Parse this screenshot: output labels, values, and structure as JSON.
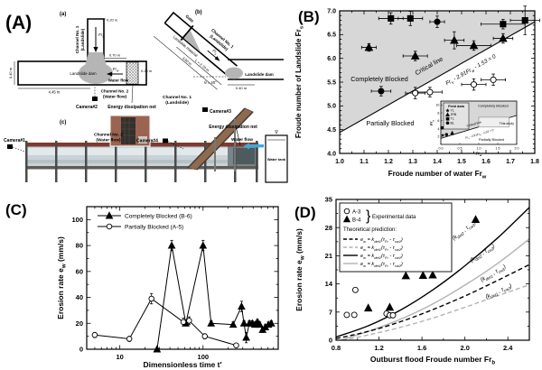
{
  "figure": {
    "panels": {
      "a": "(A)",
      "b": "(B)",
      "c": "(C)",
      "d": "(D)"
    }
  },
  "panelA": {
    "sub_a": {
      "tag": "(a)",
      "channel1_l1": "Channel No. 1",
      "channel1_l2": "(Landslide)",
      "width_dim": "0.20 m",
      "frs": "Fr_s",
      "top_dim": "0.70 m",
      "net_dim": "0.20 m",
      "left_dim": "0.40 m",
      "dam": "Landslide dam",
      "frw": "Fr_w",
      "water_flow": "Water flow",
      "channel2_l1": "Channel No. 2",
      "channel2_l2": "(Water flow)",
      "bottom_dim": "4.45 m",
      "camera2": "Camera#2",
      "net_label": "Energy dissipation net"
    },
    "sub_b": {
      "tag": "(b)",
      "gate": "Gate",
      "channel1_l1": "Channel No. 1",
      "channel1_l2": "(Landslide)",
      "material": "Landslide material",
      "len_dim": "L = 2.70 m",
      "total_dim": "3.60 m",
      "angle": "θ = 40°",
      "frs": "Fr_s",
      "dam": "Landslide dam",
      "base_dim": "0.40 m"
    },
    "sub_c": {
      "tag": "(c)",
      "camera1": "Camera#1",
      "camera3": "Camera#3",
      "camera4": "Camera#4",
      "channel1_l1": "Channel No. 1",
      "channel1_l2": "(Landslide)",
      "channel2_l1": "Channel No. 2",
      "channel2_l2": "(Water flow)",
      "net_inset_label": "Energy dissipation net",
      "net_right_label": "Energy dissipation net",
      "water_flow": "Water flow",
      "water_tank": "Water tank"
    }
  },
  "chart_data": [
    {
      "id": "B",
      "type": "scatter",
      "panel_label": "(B)",
      "xlabel": "Froude number of water  Fr_w",
      "ylabel": "Froude number of Landslide  Fr_s",
      "xlim": [
        1.0,
        1.8
      ],
      "ylim": [
        4.0,
        7.0
      ],
      "xticks": [
        1.0,
        1.1,
        1.2,
        1.3,
        1.4,
        1.5,
        1.6,
        1.7,
        1.8
      ],
      "yticks": [
        4.0,
        4.5,
        5.0,
        5.5,
        6.0,
        6.5,
        7.0
      ],
      "critical_line": {
        "slope": 2.91,
        "intercept": 1.53,
        "label": "Critical line",
        "equation": "Fr_s - 2.91Fr_w - 1.53 = 0"
      },
      "region_above": "Completely Blocked",
      "region_below": "Partially Blocked",
      "region_fill": "#d7d7d7",
      "series": [
        {
          "name": "squares-filled",
          "marker": "square",
          "filled": true,
          "points": [
            [
              1.21,
              6.84,
              0.05,
              0.12
            ],
            [
              1.29,
              6.84,
              0.05,
              0.15
            ],
            [
              1.67,
              6.72,
              0.09,
              0.1
            ],
            [
              1.76,
              6.8,
              0.06,
              0.3
            ]
          ]
        },
        {
          "name": "circles-filled",
          "marker": "circle",
          "filled": true,
          "points": [
            [
              1.4,
              6.77,
              0.03,
              0.12
            ],
            [
              1.17,
              5.31,
              0.04,
              0.1
            ]
          ]
        },
        {
          "name": "triangles-filled",
          "marker": "triangle",
          "filled": true,
          "points": [
            [
              1.12,
              6.23,
              0.03,
              0.08
            ],
            [
              1.31,
              6.05,
              0.05,
              0.1
            ],
            [
              1.47,
              6.38,
              0.04,
              0.18
            ],
            [
              1.55,
              6.27,
              0.07,
              0.1
            ],
            [
              1.67,
              6.42,
              0.04,
              0.1
            ]
          ]
        },
        {
          "name": "circles-open",
          "marker": "circle",
          "filled": false,
          "points": [
            [
              1.31,
              5.27,
              0.04,
              0.12
            ],
            [
              1.37,
              5.29,
              0.05,
              0.1
            ],
            [
              1.55,
              5.45,
              0.05,
              0.12
            ],
            [
              1.63,
              5.55,
              0.05,
              0.12
            ]
          ]
        }
      ],
      "inset": {
        "xlabel": "Fr_w",
        "ylabel": "Fr_s",
        "xlim": [
          0,
          2
        ],
        "ylim": [
          0,
          11
        ],
        "xticks": [
          0.0,
          0.5,
          1.0,
          1.5,
          2.0
        ],
        "yticks": [
          2,
          4,
          6,
          8,
          10
        ],
        "legend_title": "Field data",
        "legend": [
          {
            "marker": "star",
            "label": "YL"
          },
          {
            "marker": "triangle",
            "label": "JRB"
          },
          {
            "marker": "square",
            "label": "TL"
          },
          {
            "marker": "circle",
            "label": "BL"
          }
        ],
        "critical_label": "Critical line",
        "equation": "Fr_s - 2.91Fr_w - 1.53 = 0",
        "this_study": "This study",
        "region_above": "Completely Blocked",
        "region_below": "Partially Blocked",
        "study_box": [
          1.0,
          4.4,
          1.8,
          6.9
        ],
        "points": [
          {
            "marker": "star",
            "x": 0.05,
            "y": 2.3
          },
          {
            "marker": "triangle",
            "x": 0.3,
            "y": 2.9
          },
          {
            "marker": "square",
            "x": 0.03,
            "y": 4.2
          },
          {
            "marker": "circle",
            "x": 0.15,
            "y": 2.5
          }
        ]
      }
    },
    {
      "id": "C",
      "type": "line",
      "panel_label": "(C)",
      "xlabel": "Dimensionless time  t′",
      "ylabel": "Erosion rate  e_w (mm/s)",
      "xscale": "log",
      "xlim": [
        4,
        800
      ],
      "ylim": [
        0,
        110
      ],
      "xticks": [
        10,
        100
      ],
      "xminor": [
        5,
        6,
        7,
        8,
        9,
        20,
        30,
        40,
        50,
        60,
        70,
        80,
        90,
        200,
        300,
        400,
        500,
        600,
        700
      ],
      "yticks": [
        0,
        20,
        40,
        60,
        80,
        100
      ],
      "series": [
        {
          "name": "Completely Blocked (B-6)",
          "marker": "triangle",
          "filled": true,
          "x": [
            28,
            42,
            62,
            100,
            125,
            230,
            290,
            310,
            330,
            360,
            390,
            420,
            450,
            480,
            520,
            560,
            610,
            660
          ],
          "y": [
            0,
            80,
            20,
            80,
            20,
            19,
            33,
            20,
            9,
            20,
            20,
            19,
            21,
            19,
            15,
            17,
            19,
            20
          ],
          "yerr": [
            0,
            4,
            2,
            4,
            2,
            2,
            4,
            2,
            4,
            2,
            2,
            2,
            2,
            2,
            2,
            2,
            2,
            2
          ]
        },
        {
          "name": "Partially Blocked (A-5)",
          "marker": "circle",
          "filled": false,
          "x": [
            5,
            13,
            24,
            58,
            68,
            105,
            250
          ],
          "y": [
            11,
            8,
            39,
            21,
            22,
            10,
            3
          ],
          "yerr": [
            2,
            2,
            4,
            3,
            3,
            2,
            1
          ]
        }
      ]
    },
    {
      "id": "D",
      "type": "scatter-curves",
      "panel_label": "(D)",
      "xlabel": "Outburst flood Froude number  Fr_b",
      "ylabel": "Erosion rate  e_w (mm/s)",
      "xlim": [
        0.8,
        2.6
      ],
      "ylim": [
        0,
        35
      ],
      "xticks": [
        0.8,
        1.2,
        1.6,
        2.0,
        2.4
      ],
      "yticks": [
        0,
        7,
        14,
        21,
        28,
        35
      ],
      "legend": {
        "exp_items": [
          {
            "marker": "circle",
            "filled": false,
            "label": "A-3"
          },
          {
            "marker": "triangle",
            "filled": true,
            "label": "B-4"
          }
        ],
        "exp_suffix": "Experimental data",
        "theory_title": "Theoretical prediction:",
        "items": [
          {
            "dash": true,
            "color": "#000000",
            "label": "e_w = k_det1(τ_Fr - τ_cw1)"
          },
          {
            "dash": true,
            "color": "#b3b3b3",
            "label": "e_w = k_det1(τ_Fr - τ_cw2)"
          },
          {
            "dash": false,
            "color": "#000000",
            "label": "e_w = k_det2(τ_Fr - τ_cw1)"
          },
          {
            "dash": false,
            "color": "#b3b3b3",
            "label": "e_w = k_det2(τ_Fr - τ_cw2)"
          }
        ]
      },
      "series": [
        {
          "name": "A-3",
          "marker": "circle",
          "filled": false,
          "points": [
            [
              0.9,
              6.3
            ],
            [
              0.97,
              6.3
            ],
            [
              0.98,
              12.5
            ],
            [
              1.27,
              6.6
            ],
            [
              1.3,
              6.2
            ],
            [
              1.33,
              6.2
            ]
          ]
        },
        {
          "name": "B-4",
          "marker": "triangle",
          "filled": true,
          "points": [
            [
              1.1,
              8.0
            ],
            [
              1.3,
              8.2
            ],
            [
              1.45,
              16.0
            ],
            [
              1.6,
              20.3
            ],
            [
              1.61,
              16.1
            ],
            [
              1.7,
              16.2
            ],
            [
              2.1,
              30.0
            ]
          ]
        }
      ],
      "curves": [
        {
          "label": "(k_det2 , τ_cw1)",
          "dash": false,
          "color": "#000000",
          "pts": [
            [
              0.8,
              0.8
            ],
            [
              1.1,
              3.6
            ],
            [
              1.4,
              7.5
            ],
            [
              1.7,
              12.5
            ],
            [
              2.0,
              18.5
            ],
            [
              2.3,
              25.3
            ],
            [
              2.6,
              33.0
            ]
          ],
          "label_at": [
            2.0,
            27.0
          ],
          "label_rot": -38
        },
        {
          "label": "(k_det2 , τ_cw2)",
          "dash": false,
          "color": "#b3b3b3",
          "pts": [
            [
              0.84,
              0.0
            ],
            [
              1.1,
              2.2
            ],
            [
              1.4,
              5.2
            ],
            [
              1.7,
              9.0
            ],
            [
              2.0,
              13.7
            ],
            [
              2.3,
              19.0
            ],
            [
              2.6,
              25.2
            ]
          ],
          "label_at": [
            2.17,
            21.3
          ],
          "label_rot": -33
        },
        {
          "label": "(k_det1 , τ_cw1)",
          "dash": true,
          "color": "#000000",
          "pts": [
            [
              0.8,
              0.4
            ],
            [
              1.1,
              2.2
            ],
            [
              1.4,
              4.6
            ],
            [
              1.7,
              7.6
            ],
            [
              2.0,
              11.0
            ],
            [
              2.3,
              14.8
            ],
            [
              2.6,
              18.8
            ]
          ],
          "label_at": [
            2.27,
            16.3
          ],
          "label_rot": -30
        },
        {
          "label": "(k_det1 , τ_cw2)",
          "dash": true,
          "color": "#b3b3b3",
          "pts": [
            [
              0.86,
              0.0
            ],
            [
              1.1,
              1.3
            ],
            [
              1.4,
              3.2
            ],
            [
              1.7,
              5.5
            ],
            [
              2.0,
              8.2
            ],
            [
              2.3,
              11.0
            ],
            [
              2.6,
              13.8
            ]
          ],
          "label_at": [
            2.32,
            11.8
          ],
          "label_rot": -25
        }
      ]
    }
  ],
  "colors": {
    "gray_region": "#d7d7d7",
    "gray_curve": "#b3b3b3",
    "water_arrow": "#3fa9dc",
    "dam_gray": "#b5b5b5",
    "flume_frame": "#7c3b2e",
    "flume_glass": "#c9d2d6"
  }
}
